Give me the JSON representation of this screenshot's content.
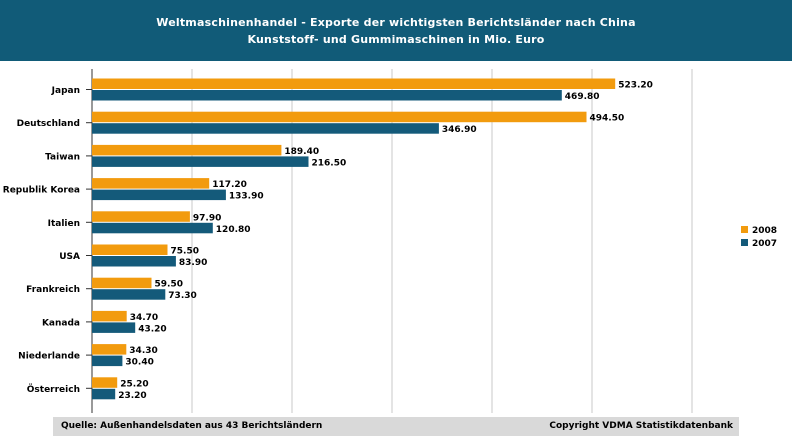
{
  "header": {
    "title": "Weltmaschinenhandel - Exporte der wichtigsten Berichtsländer nach China",
    "subtitle": "Kunststoff- und Gummimaschinen in Mio. Euro"
  },
  "footer": {
    "source": "Quelle: Außenhandelsdaten aus 43 Berichtsländern",
    "copyright": "Copyright VDMA Statistikdatenbank"
  },
  "colors": {
    "2008": "#f29b0e",
    "2007": "#145a7a",
    "header": "#115b78"
  },
  "chart_data": {
    "type": "bar",
    "orientation": "horizontal",
    "title": "Weltmaschinenhandel - Exporte der wichtigsten Berichtsländer nach China",
    "subtitle": "Kunststoff- und Gummimaschinen in Mio. Euro",
    "categories": [
      "Japan",
      "Deutschland",
      "Taiwan",
      "Republik Korea",
      "Italien",
      "USA",
      "Frankreich",
      "Kanada",
      "Niederlande",
      "Österreich"
    ],
    "series": [
      {
        "name": "2008",
        "values_text": [
          "523.20",
          "494.50",
          "189.40",
          "117.20",
          "97.90",
          "75.50",
          "59.50",
          "34.70",
          "34.30",
          "25.20"
        ],
        "values": [
          523.2,
          494.5,
          189.4,
          117.2,
          97.9,
          75.5,
          59.5,
          34.7,
          34.3,
          25.2
        ]
      },
      {
        "name": "2007",
        "values_text": [
          "469.80",
          "346.90",
          "216.50",
          "133.90",
          "120.80",
          "83.90",
          "73.30",
          "43.20",
          "30.40",
          "23.20"
        ],
        "values": [
          469.8,
          346.9,
          216.5,
          133.9,
          120.8,
          83.9,
          73.3,
          43.2,
          30.4,
          23.2
        ]
      }
    ],
    "xlim": [
      0,
      600
    ],
    "grid": true,
    "legend": "right"
  }
}
